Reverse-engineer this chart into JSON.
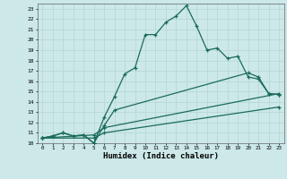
{
  "xlabel": "Humidex (Indice chaleur)",
  "bg_color": "#cce8e8",
  "grid_color": "#aacccc",
  "line_color": "#1a6b5a",
  "xlim": [
    -0.5,
    23.5
  ],
  "ylim": [
    10,
    23.5
  ],
  "xticks": [
    0,
    1,
    2,
    3,
    4,
    5,
    6,
    7,
    8,
    9,
    10,
    11,
    12,
    13,
    14,
    15,
    16,
    17,
    18,
    19,
    20,
    21,
    22,
    23
  ],
  "yticks": [
    10,
    11,
    12,
    13,
    14,
    15,
    16,
    17,
    18,
    19,
    20,
    21,
    22,
    23
  ],
  "lines": [
    {
      "x": [
        0,
        1,
        2,
        3,
        4,
        5,
        6,
        7,
        8,
        9,
        10,
        11,
        12,
        13,
        14,
        15,
        16,
        17,
        18,
        19,
        20,
        21,
        22,
        23
      ],
      "y": [
        10.5,
        10.7,
        11.0,
        10.7,
        10.8,
        10.0,
        12.5,
        14.5,
        16.7,
        17.3,
        20.5,
        20.5,
        21.7,
        22.3,
        23.3,
        21.3,
        19.0,
        19.2,
        18.2,
        18.4,
        16.4,
        16.2,
        14.8,
        14.7
      ]
    },
    {
      "x": [
        0,
        1,
        2,
        3,
        4,
        5,
        6,
        7,
        20,
        21,
        22,
        23
      ],
      "y": [
        10.5,
        10.7,
        11.0,
        10.7,
        10.8,
        10.0,
        11.7,
        13.2,
        16.8,
        16.4,
        14.8,
        14.7
      ]
    },
    {
      "x": [
        0,
        5,
        6,
        23
      ],
      "y": [
        10.5,
        10.8,
        11.5,
        14.8
      ]
    },
    {
      "x": [
        0,
        5,
        6,
        23
      ],
      "y": [
        10.5,
        10.5,
        11.0,
        13.5
      ]
    }
  ]
}
